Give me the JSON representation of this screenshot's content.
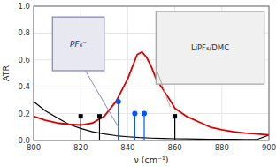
{
  "chart_data": {
    "type": "line",
    "xlabel": "ν (cm⁻¹)",
    "ylabel": "ATR",
    "xlim": [
      800,
      900
    ],
    "ylim": [
      0.0,
      1.0
    ],
    "xticks": [
      800,
      820,
      840,
      860,
      880,
      900
    ],
    "yticks": [
      {
        "value": 0.0,
        "label": "0.0"
      },
      0.2,
      0.4,
      0.6,
      0.8,
      {
        "value": 1.0,
        "label": "1.0"
      }
    ],
    "series": [
      {
        "type": "line",
        "color": "#000000",
        "x": [
          800,
          805,
          810,
          815,
          820,
          825,
          830,
          835,
          840,
          845,
          850,
          855,
          860,
          865,
          870,
          875,
          880,
          885,
          890,
          895,
          900
        ],
        "values": [
          0.29,
          0.22,
          0.17,
          0.12,
          0.09,
          0.065,
          0.048,
          0.036,
          0.028,
          0.022,
          0.018,
          0.015,
          0.013,
          0.012,
          0.011,
          0.01,
          0.009,
          0.009,
          0.008,
          0.008,
          0.04
        ]
      },
      {
        "type": "line",
        "color": "#dd0000",
        "x": [
          800,
          805,
          810,
          815,
          820,
          825,
          830,
          835,
          840,
          842,
          844,
          846,
          848,
          850,
          852,
          855,
          858,
          860,
          865,
          870,
          875,
          880,
          885,
          890,
          895,
          900
        ],
        "values": [
          0.18,
          0.15,
          0.13,
          0.12,
          0.115,
          0.13,
          0.18,
          0.29,
          0.46,
          0.55,
          0.64,
          0.66,
          0.62,
          0.55,
          0.46,
          0.38,
          0.3,
          0.24,
          0.18,
          0.14,
          0.1,
          0.08,
          0.065,
          0.055,
          0.048,
          0.042
        ]
      },
      {
        "type": "stem",
        "color": "#000000",
        "marker": "square",
        "x": [
          820,
          828,
          860
        ],
        "values": [
          0.18,
          0.18,
          0.18
        ]
      },
      {
        "type": "stem",
        "color": "#0055ff",
        "marker": "circle",
        "x": [
          836,
          843,
          847
        ],
        "values": [
          0.29,
          0.2,
          0.2
        ]
      }
    ],
    "annotations": [
      {
        "text": "PF₆⁻",
        "x": 836,
        "y": 0.1,
        "color": "#8888cc"
      },
      {
        "text": "LiPF₆/DMC",
        "x": 858,
        "y": 0.25,
        "color": "#aaaaaa"
      }
    ]
  }
}
